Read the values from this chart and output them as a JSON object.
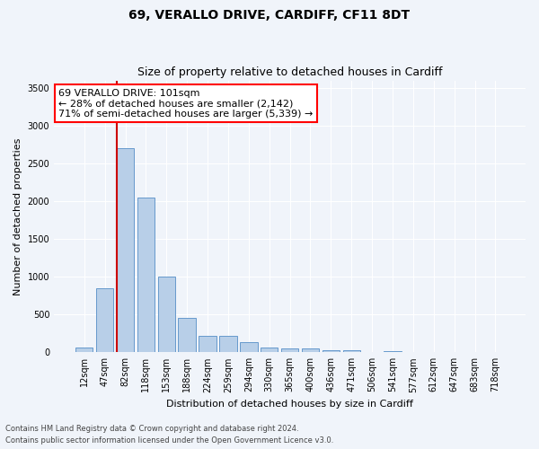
{
  "title1": "69, VERALLO DRIVE, CARDIFF, CF11 8DT",
  "title2": "Size of property relative to detached houses in Cardiff",
  "xlabel": "Distribution of detached houses by size in Cardiff",
  "ylabel": "Number of detached properties",
  "categories": [
    "12sqm",
    "47sqm",
    "82sqm",
    "118sqm",
    "153sqm",
    "188sqm",
    "224sqm",
    "259sqm",
    "294sqm",
    "330sqm",
    "365sqm",
    "400sqm",
    "436sqm",
    "471sqm",
    "506sqm",
    "541sqm",
    "577sqm",
    "612sqm",
    "647sqm",
    "683sqm",
    "718sqm"
  ],
  "values": [
    60,
    850,
    2700,
    2050,
    1000,
    450,
    220,
    220,
    130,
    60,
    50,
    50,
    30,
    30,
    0,
    20,
    0,
    0,
    0,
    0,
    0
  ],
  "bar_color": "#b8cfe8",
  "bar_edge_color": "#6699cc",
  "annotation_title": "69 VERALLO DRIVE: 101sqm",
  "annotation_line1": "← 28% of detached houses are smaller (2,142)",
  "annotation_line2": "71% of semi-detached houses are larger (5,339) →",
  "ylim": [
    0,
    3600
  ],
  "yticks": [
    0,
    500,
    1000,
    1500,
    2000,
    2500,
    3000,
    3500
  ],
  "footer1": "Contains HM Land Registry data © Crown copyright and database right 2024.",
  "footer2": "Contains public sector information licensed under the Open Government Licence v3.0.",
  "bg_color": "#f0f4fa",
  "plot_bg_color": "#f0f4fa",
  "grid_color": "#ffffff",
  "red_line_color": "#cc0000",
  "title1_fontsize": 10,
  "title2_fontsize": 9,
  "ylabel_fontsize": 8,
  "xlabel_fontsize": 8,
  "tick_fontsize": 7,
  "footer_fontsize": 6,
  "annot_fontsize": 8
}
